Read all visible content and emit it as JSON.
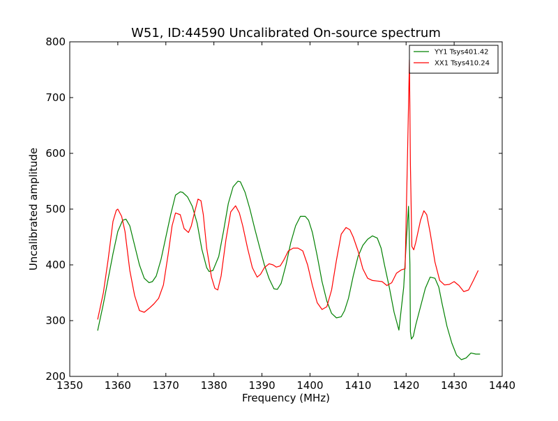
{
  "chart_data": {
    "type": "line",
    "title": "W51, ID:44590 Uncalibrated On-source spectrum",
    "xlabel": "Frequency (MHz)",
    "ylabel": "Uncalibrated amplitude",
    "xlim": [
      1350,
      1440
    ],
    "ylim": [
      200,
      800
    ],
    "xticks": [
      "1350",
      "1360",
      "1370",
      "1380",
      "1390",
      "1400",
      "1410",
      "1420",
      "1430",
      "1440"
    ],
    "yticks": [
      "200",
      "300",
      "400",
      "500",
      "600",
      "700",
      "800"
    ],
    "grid": false,
    "legend": "top-right",
    "series": [
      {
        "name": "YY1 Tsys401.42",
        "color": "#008000",
        "x": [
          1355.8,
          1357,
          1358,
          1359,
          1360,
          1361,
          1361.7,
          1362.5,
          1363.5,
          1364.5,
          1365.5,
          1366.5,
          1367.2,
          1368,
          1369,
          1370,
          1371,
          1372,
          1373,
          1373.5,
          1374.5,
          1375.5,
          1376.5,
          1377.5,
          1378.5,
          1379,
          1379.8,
          1381,
          1382,
          1383,
          1384,
          1385,
          1385.5,
          1386.5,
          1387.5,
          1388.5,
          1389.5,
          1390.5,
          1391.5,
          1392.5,
          1393.2,
          1394,
          1395,
          1396,
          1397,
          1398,
          1399,
          1399.7,
          1400.5,
          1401.5,
          1402.5,
          1403.5,
          1404.5,
          1405.5,
          1406.5,
          1407.2,
          1408,
          1409,
          1410,
          1411,
          1412,
          1413,
          1414,
          1414.8,
          1415.5,
          1416.5,
          1417.5,
          1418.5,
          1419.5,
          1420.1,
          1420.5,
          1420.8,
          1420.9,
          1421.1,
          1421.5,
          1422,
          1423,
          1424,
          1425,
          1426,
          1426.8,
          1427.5,
          1428.5,
          1429.5,
          1430.5,
          1431.5,
          1432.5,
          1433.5,
          1434.5,
          1435.4
        ],
        "y": [
          282,
          330,
          375,
          420,
          460,
          480,
          482,
          470,
          435,
          400,
          376,
          368,
          370,
          380,
          410,
          450,
          490,
          525,
          531,
          530,
          522,
          505,
          475,
          428,
          395,
          388,
          390,
          415,
          460,
          510,
          540,
          550,
          549,
          530,
          500,
          465,
          432,
          400,
          375,
          357,
          356,
          367,
          400,
          440,
          470,
          487,
          487,
          480,
          458,
          416,
          370,
          335,
          313,
          305,
          307,
          318,
          340,
          380,
          415,
          435,
          446,
          452,
          448,
          430,
          400,
          360,
          315,
          283,
          360,
          450,
          505,
          400,
          280,
          267,
          272,
          292,
          325,
          358,
          378,
          376,
          360,
          330,
          290,
          260,
          238,
          230,
          233,
          242,
          240,
          240
        ]
      },
      {
        "name": "XX1 Tsys410.24",
        "color": "#ff0000",
        "x": [
          1355.8,
          1357,
          1358,
          1359,
          1359.7,
          1360,
          1360.8,
          1361.5,
          1362.5,
          1363.5,
          1364.5,
          1365.5,
          1366.5,
          1367.5,
          1368.5,
          1369.5,
          1370.5,
          1371.3,
          1372,
          1373,
          1373.8,
          1374.7,
          1375.3,
          1376,
          1376.7,
          1377.3,
          1377.8,
          1378.5,
          1379.5,
          1380.2,
          1380.8,
          1381.5,
          1382.5,
          1383.5,
          1384.5,
          1385.3,
          1386,
          1387,
          1388,
          1389,
          1389.7,
          1390.5,
          1391.5,
          1392.3,
          1393,
          1393.8,
          1394.5,
          1395.5,
          1396.5,
          1397.5,
          1398.5,
          1399.5,
          1400.5,
          1401.5,
          1402.5,
          1403.5,
          1404.5,
          1405.5,
          1406.5,
          1407.5,
          1408.3,
          1409,
          1410,
          1411,
          1412,
          1413,
          1414,
          1415,
          1416,
          1417,
          1418,
          1419,
          1419.8,
          1420.3,
          1420.7,
          1420.9,
          1421.2,
          1421.6,
          1422,
          1423,
          1423.7,
          1424.3,
          1425,
          1426,
          1427,
          1428,
          1429,
          1430,
          1431,
          1432,
          1433,
          1434,
          1435
        ],
        "y": [
          302,
          350,
          410,
          478,
          498,
          500,
          487,
          460,
          390,
          345,
          318,
          315,
          322,
          330,
          340,
          364,
          420,
          470,
          493,
          490,
          465,
          458,
          470,
          495,
          518,
          515,
          490,
          430,
          378,
          358,
          355,
          380,
          445,
          495,
          506,
          493,
          470,
          430,
          395,
          378,
          383,
          395,
          402,
          400,
          396,
          398,
          408,
          425,
          430,
          430,
          425,
          400,
          363,
          332,
          320,
          325,
          355,
          408,
          455,
          467,
          463,
          450,
          425,
          393,
          376,
          372,
          371,
          370,
          363,
          368,
          385,
          391,
          393,
          600,
          768,
          580,
          433,
          427,
          440,
          480,
          497,
          490,
          458,
          405,
          372,
          364,
          365,
          370,
          363,
          352,
          355,
          372,
          390
        ]
      }
    ]
  }
}
